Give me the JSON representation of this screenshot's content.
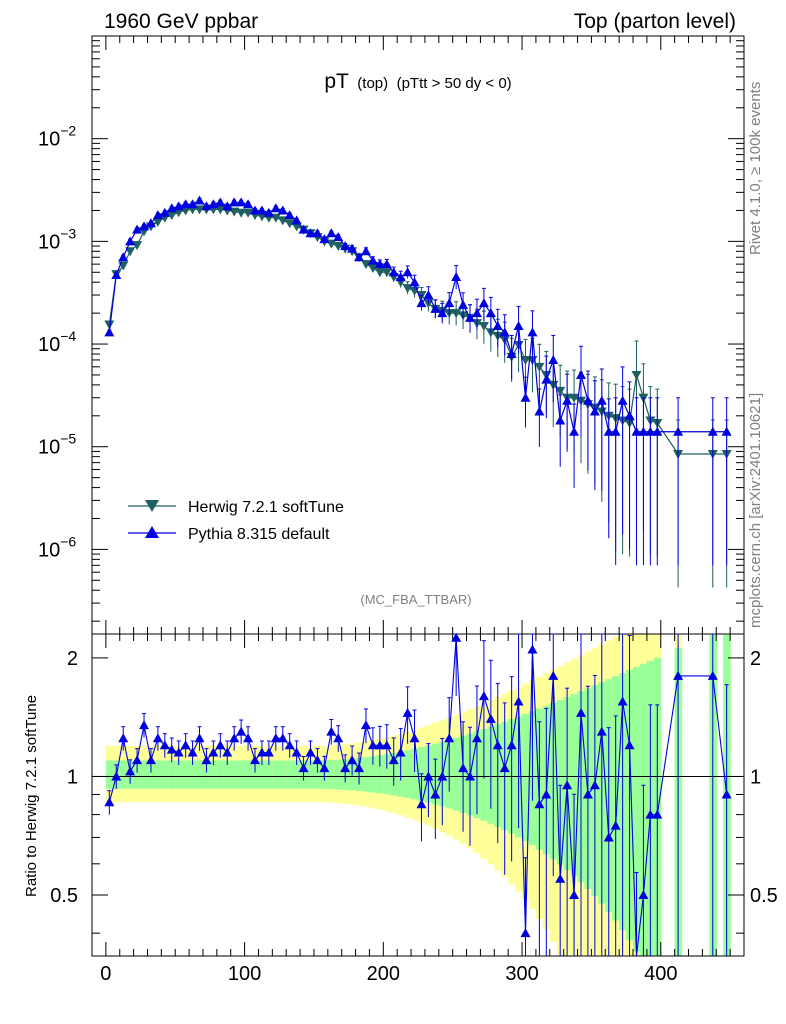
{
  "header": {
    "left": "1960 GeV ppbar",
    "right": "Top (parton level)"
  },
  "title": {
    "main": "pT",
    "sub1": "(top)",
    "sub2": "(pTtt > 50 dy < 0)"
  },
  "side_labels": {
    "rivet": "Rivet 4.1.0, ≥ 100k events",
    "mcplots": "mcplots.cern.ch [arXiv:2401.10621]"
  },
  "analysis_tag": "(MC_FBA_TTBAR)",
  "legend": [
    {
      "name": "Herwig 7.2.1 softTune",
      "color": "#1e5f5f",
      "marker": "down-triangle"
    },
    {
      "name": "Pythia 8.315 default",
      "color": "#0000e0",
      "marker": "up-triangle"
    }
  ],
  "colors": {
    "herwig": "#1e5f5f",
    "pythia": "#0000e0",
    "band_outer": "#ffff99",
    "band_inner": "#99ff99"
  },
  "main_axis": {
    "y_ticks": [
      {
        "value": 1e-06,
        "base": "10",
        "exp": "−6"
      },
      {
        "value": 1e-05,
        "base": "10",
        "exp": "−5"
      },
      {
        "value": 0.0001,
        "base": "10",
        "exp": "−4"
      },
      {
        "value": 0.001,
        "base": "10",
        "exp": "−3"
      },
      {
        "value": 0.01,
        "base": "10",
        "exp": "−2"
      }
    ]
  },
  "ratio_axis": {
    "ylabel": "Ratio to Herwig 7.2.1 softTune",
    "ticks": [
      "0.5",
      "1",
      "2"
    ]
  },
  "x_ticks": [
    "0",
    "100",
    "200",
    "300",
    "400"
  ],
  "chart_data": {
    "type": "line",
    "title": "pT (top) (pTtt > 50 dy < 0)",
    "xlabel": "",
    "ylabel": "",
    "xlim": [
      -10,
      460
    ],
    "ylim": [
      1.5e-07,
      0.1
    ],
    "yscale": "log",
    "ratio_ylim": [
      0.35,
      2.3
    ],
    "x": [
      2.5,
      7.5,
      12.5,
      17.5,
      22.5,
      27.5,
      32.5,
      37.5,
      42.5,
      47.5,
      52.5,
      57.5,
      62.5,
      67.5,
      72.5,
      77.5,
      82.5,
      87.5,
      92.5,
      97.5,
      102.5,
      107.5,
      112.5,
      117.5,
      122.5,
      127.5,
      132.5,
      137.5,
      142.5,
      147.5,
      152.5,
      157.5,
      162.5,
      167.5,
      172.5,
      177.5,
      182.5,
      187.5,
      192.5,
      197.5,
      202.5,
      207.5,
      212.5,
      217.5,
      222.5,
      227.5,
      232.5,
      237.5,
      242.5,
      247.5,
      252.5,
      257.5,
      262.5,
      267.5,
      272.5,
      277.5,
      282.5,
      287.5,
      292.5,
      297.5,
      302.5,
      307.5,
      312.5,
      317.5,
      322.5,
      327.5,
      332.5,
      337.5,
      342.5,
      347.5,
      352.5,
      357.5,
      362.5,
      367.5,
      372.5,
      377.5,
      382.5,
      387.5,
      392.5,
      397.5,
      412.5,
      437.5,
      447.5
    ],
    "series": [
      {
        "name": "Herwig 7.2.1 softTune",
        "values": [
          0.000155,
          0.00048,
          0.00058,
          0.0008,
          0.00092,
          0.00125,
          0.0014,
          0.00155,
          0.0017,
          0.0018,
          0.00192,
          0.002,
          0.00205,
          0.00205,
          0.00205,
          0.00205,
          0.00205,
          0.002,
          0.00195,
          0.0019,
          0.0019,
          0.0018,
          0.00175,
          0.0017,
          0.0017,
          0.0016,
          0.0015,
          0.0014,
          0.0013,
          0.0012,
          0.0011,
          0.001,
          0.00095,
          0.0009,
          0.00085,
          0.0008,
          0.0007,
          0.0006,
          0.00055,
          0.0005,
          0.0005,
          0.00045,
          0.0004,
          0.00035,
          0.00033,
          0.0003,
          0.00025,
          0.00022,
          0.00021,
          0.0002,
          0.0002,
          0.00019,
          0.00018,
          0.00016,
          0.00015,
          0.00013,
          0.00012,
          0.00011,
          7.5e-05,
          9.8e-05,
          7e-05,
          7e-05,
          6e-05,
          5e-05,
          4e-05,
          3.5e-05,
          3e-05,
          3e-05,
          2.8e-05,
          2.6e-05,
          2.4e-05,
          2.2e-05,
          2e-05,
          1.9e-05,
          1.8e-05,
          1.7e-05,
          5e-05,
          3e-05,
          1.8e-05,
          1.7e-05,
          8.5e-06,
          8.5e-06,
          8.5e-06
        ]
      },
      {
        "name": "Pythia 8.315 default",
        "values": [
          0.00013,
          0.00047,
          0.0007,
          0.001,
          0.0013,
          0.0014,
          0.0015,
          0.0018,
          0.0019,
          0.0021,
          0.0022,
          0.0023,
          0.0023,
          0.0025,
          0.0022,
          0.0023,
          0.0024,
          0.0022,
          0.0024,
          0.0024,
          0.0023,
          0.002,
          0.002,
          0.0019,
          0.0021,
          0.002,
          0.0018,
          0.0016,
          0.0013,
          0.0012,
          0.0012,
          0.00105,
          0.0012,
          0.0011,
          0.0009,
          0.00085,
          0.0007,
          0.0008,
          0.00065,
          0.0006,
          0.0006,
          0.0005,
          0.00045,
          0.0005,
          0.0004,
          0.00025,
          0.0003,
          0.00022,
          0.0002,
          0.00025,
          0.00045,
          0.00024,
          0.00018,
          0.0002,
          0.00025,
          0.0002,
          0.00015,
          0.00013,
          8e-05,
          0.00015,
          3e-05,
          0.00013,
          2.2e-05,
          4.5e-05,
          7e-05,
          1.8e-05,
          2.8e-05,
          1.4e-05,
          5e-05,
          2.8e-05,
          2.2e-05,
          2.8e-05,
          1.4e-05,
          1.4e-05,
          2.8e-05,
          2e-05,
          1.4e-05,
          1.4e-05,
          1.4e-05,
          1.4e-05,
          1.4e-05,
          1.4e-05,
          1.4e-05
        ]
      }
    ],
    "ratio_values": [
      0.86,
      1.0,
      1.25,
      1.03,
      1.1,
      1.35,
      1.1,
      1.25,
      1.2,
      1.17,
      1.15,
      1.2,
      1.15,
      1.25,
      1.1,
      1.15,
      1.2,
      1.15,
      1.25,
      1.3,
      1.25,
      1.1,
      1.15,
      1.15,
      1.25,
      1.25,
      1.2,
      1.15,
      1.05,
      1.15,
      1.1,
      1.05,
      1.3,
      1.25,
      1.05,
      1.1,
      1.05,
      1.35,
      1.2,
      1.2,
      1.2,
      1.1,
      1.15,
      1.45,
      1.25,
      0.85,
      1.0,
      0.9,
      1.0,
      1.25,
      2.25,
      1.05,
      1.0,
      1.25,
      1.6,
      1.4,
      1.2,
      1.05,
      1.2,
      1.55,
      0.4,
      2.1,
      0.85,
      0.9,
      1.8,
      0.55,
      0.95,
      0.5,
      1.45,
      0.9,
      0.95,
      1.3,
      0.7,
      0.75,
      1.55,
      1.2,
      0.3,
      0.5,
      0.8,
      0.8,
      1.8,
      1.8,
      0.9
    ]
  }
}
